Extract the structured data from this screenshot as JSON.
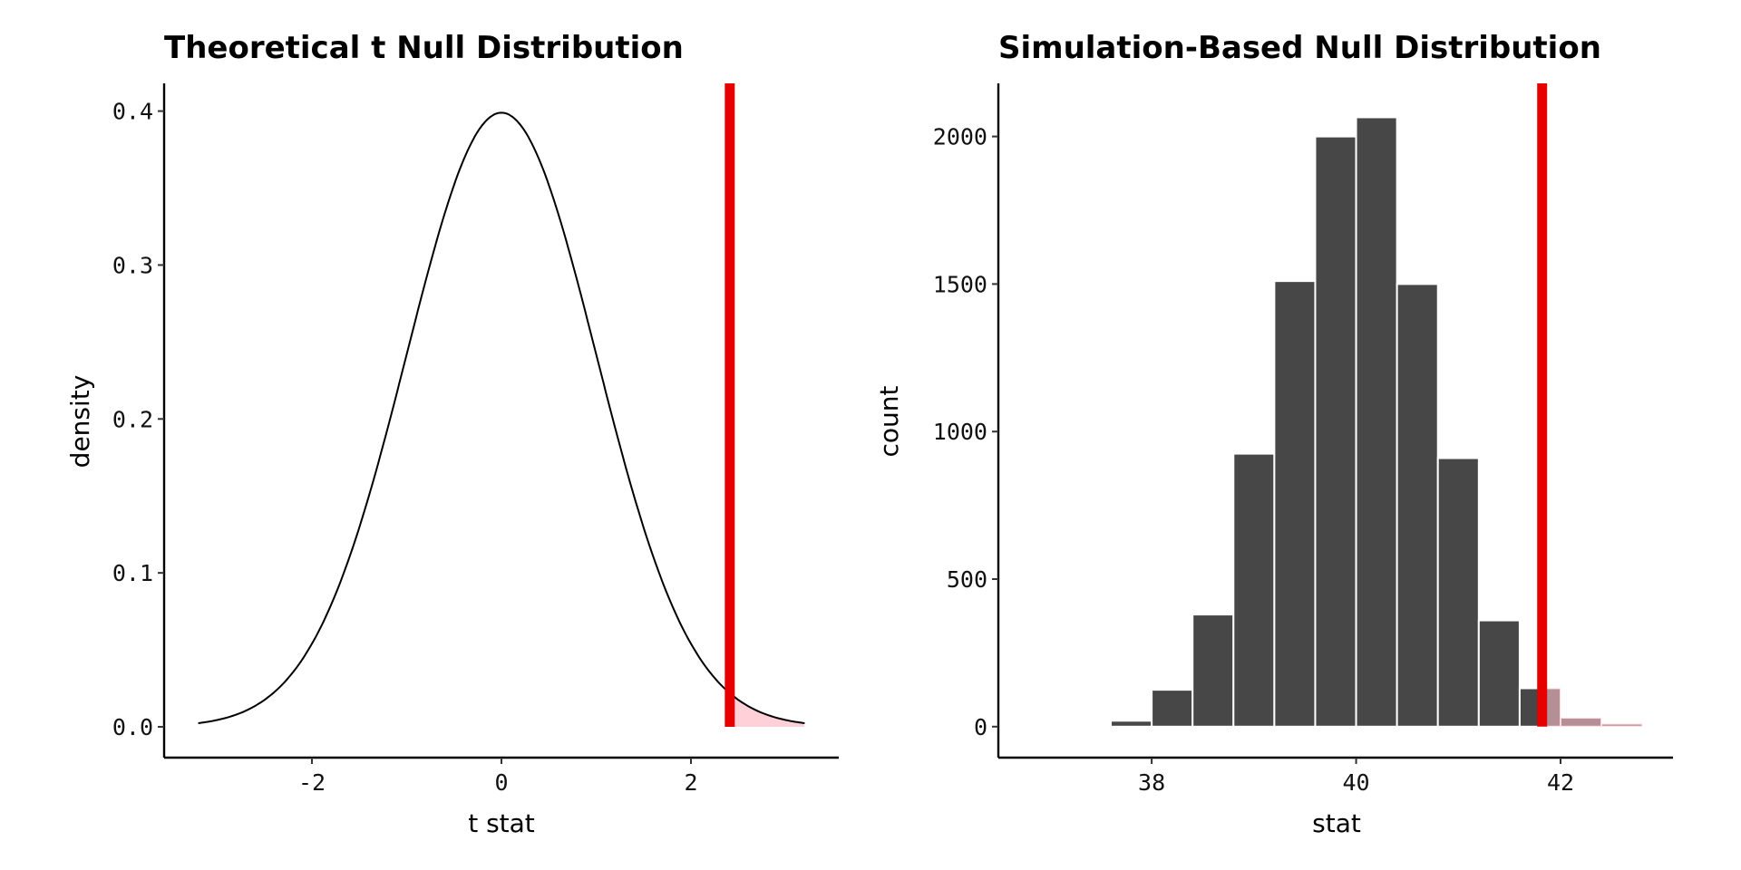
{
  "chart_data": [
    {
      "type": "line",
      "title": "Theoretical t Null Distribution",
      "xlabel": "t stat",
      "ylabel": "density",
      "xlim": [
        -3.56,
        3.56
      ],
      "ylim": [
        -0.02,
        0.418
      ],
      "x_range": [
        -3.2,
        3.2
      ],
      "distribution": "t (approximately standard normal)",
      "xticks": [
        -2,
        0,
        2
      ],
      "xtick_labels": [
        "-2",
        "0",
        "2"
      ],
      "yticks": [
        0.0,
        0.1,
        0.2,
        0.3,
        0.4
      ],
      "ytick_labels": [
        "0.0",
        "0.1",
        "0.2",
        "0.3",
        "0.4"
      ],
      "observed_stat": 2.41,
      "shade_direction": "right",
      "colors": {
        "line": "#000000",
        "observed": "#e60000",
        "shade": "#ffc0cb"
      }
    },
    {
      "type": "bar",
      "title": "Simulation-Based Null Distribution",
      "xlabel": "stat",
      "ylabel": "count",
      "xlim": [
        36.5,
        43.1
      ],
      "ylim": [
        -105,
        2180
      ],
      "bin_edges": [
        37.6,
        38.0,
        38.4,
        38.8,
        39.2,
        39.6,
        40.0,
        40.4,
        40.8,
        41.2,
        41.6,
        42.0,
        42.4,
        42.8
      ],
      "values": [
        20,
        125,
        380,
        925,
        1510,
        2000,
        2065,
        1500,
        910,
        360,
        130,
        30,
        10
      ],
      "xticks": [
        38,
        40,
        42
      ],
      "xtick_labels": [
        "38",
        "40",
        "42"
      ],
      "yticks": [
        0,
        500,
        1000,
        1500,
        2000
      ],
      "ytick_labels": [
        "0",
        "500",
        "1000",
        "1500",
        "2000"
      ],
      "observed_stat": 41.82,
      "shade_direction": "right",
      "colors": {
        "bar": "#474747",
        "observed": "#e60000",
        "shade": "#ffc0cb"
      }
    }
  ]
}
